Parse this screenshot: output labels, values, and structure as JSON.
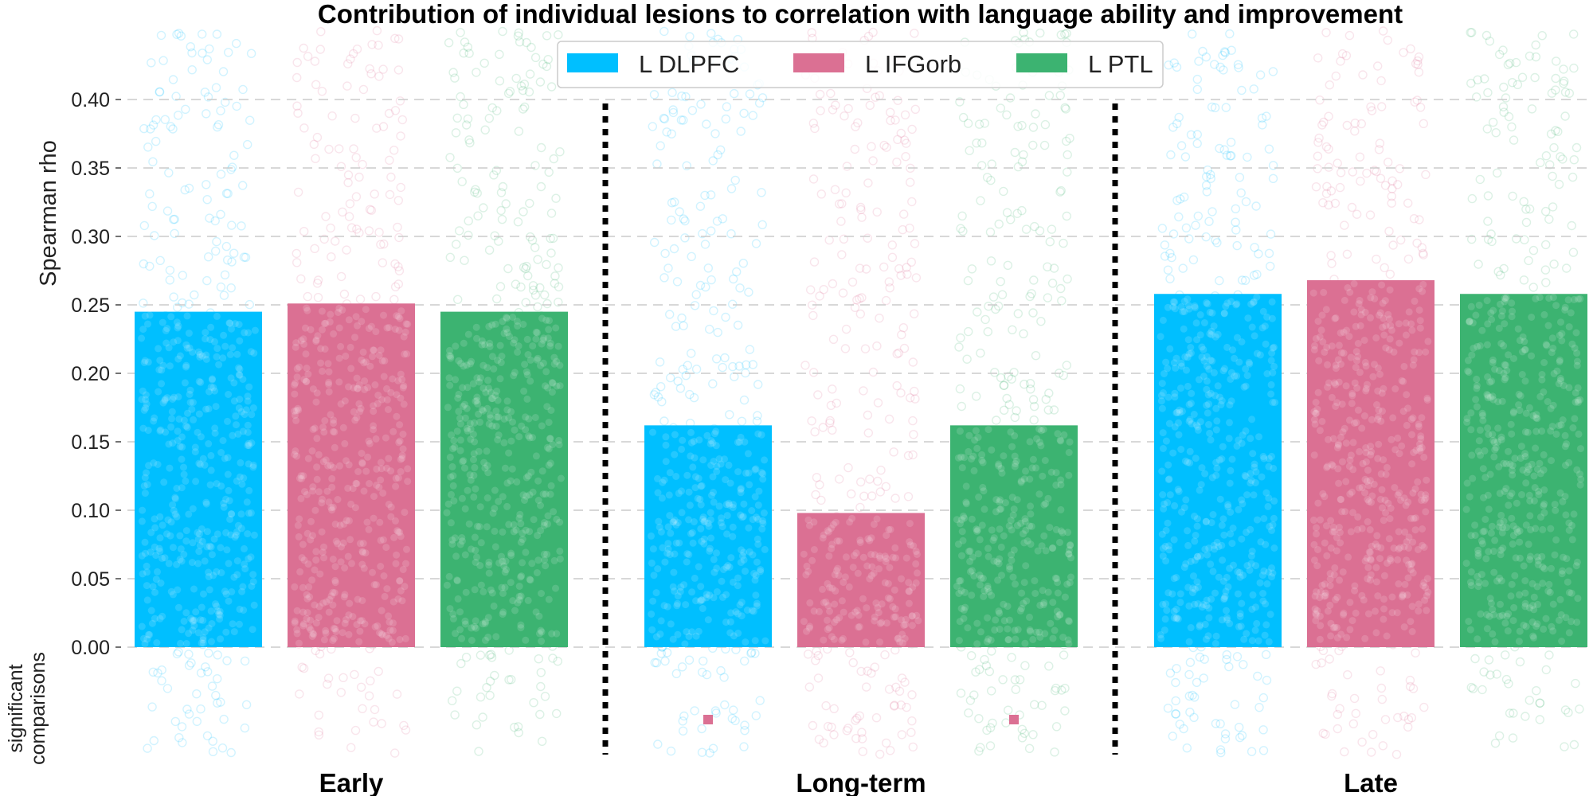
{
  "chart_data": {
    "type": "bar",
    "title": "Contribution of individual lesions to correlation with language ability and improvement",
    "ylabel": "Spearman rho",
    "sig_label_line1": "significant",
    "sig_label_line2": "comparisons",
    "ylim": [
      0,
      0.44
    ],
    "yticks": [
      "0.00",
      "0.05",
      "0.10",
      "0.15",
      "0.20",
      "0.25",
      "0.30",
      "0.35",
      "0.40"
    ],
    "grid": true,
    "legend_position": "top-center",
    "categories": [
      "Early",
      "Long-term",
      "Late"
    ],
    "series": [
      {
        "name": "L DLPFC",
        "color": "#00bfff",
        "values": [
          0.245,
          0.162,
          0.258
        ]
      },
      {
        "name": "L IFGorb",
        "color": "#db7093",
        "values": [
          0.251,
          0.098,
          0.268
        ]
      },
      {
        "name": "L PTL",
        "color": "#3cb371",
        "values": [
          0.245,
          0.162,
          0.258
        ]
      }
    ],
    "significance_markers": [
      {
        "category": "Long-term",
        "series": "L DLPFC",
        "color": "#db7093"
      },
      {
        "category": "Long-term",
        "series": "L PTL",
        "color": "#db7093"
      }
    ]
  }
}
